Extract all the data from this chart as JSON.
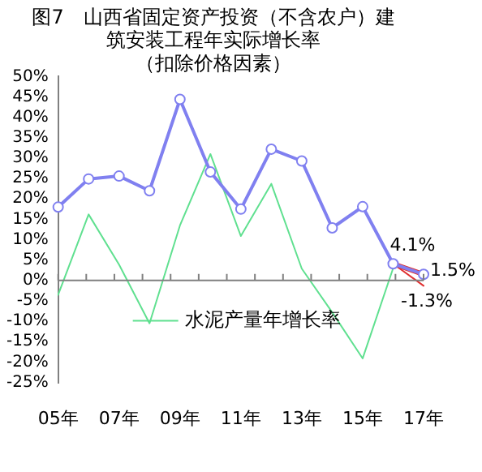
{
  "chart_data": {
    "type": "line",
    "title": "图7　山西省固定资产投资（不含农户）建筑安装工程年实际增长率",
    "subtitle": "（扣除价格因素）",
    "categories": [
      "05年",
      null,
      "07年",
      null,
      "09年",
      null,
      "11年",
      null,
      "13年",
      null,
      "15年",
      null,
      "17年"
    ],
    "series": [
      {
        "color": "#8080f0",
        "marker": "circle",
        "values": [
          18.0,
          24.9,
          25.6,
          22.0,
          44.4,
          26.6,
          17.5,
          32.2,
          29.3,
          12.9,
          18.1,
          4.1,
          1.5
        ]
      },
      {
        "name": "水泥产量年增长率",
        "color": "#60e090",
        "marker": "none",
        "values": [
          -3.5,
          16.2,
          3.9,
          -10.5,
          13.5,
          31.0,
          10.9,
          23.7,
          2.9,
          -7.8,
          -19.1,
          3.0,
          null
        ]
      },
      {
        "color": "#e03030",
        "marker": "none",
        "values": [
          null,
          null,
          null,
          null,
          null,
          null,
          null,
          null,
          null,
          null,
          null,
          4.1,
          1.5
        ]
      },
      {
        "color": "#e03030",
        "marker": "none",
        "values": [
          null,
          null,
          null,
          null,
          null,
          null,
          null,
          null,
          null,
          null,
          null,
          4.1,
          -1.3
        ]
      }
    ],
    "ylim": [
      -25,
      50
    ],
    "yticks": [
      {
        "value": -25,
        "label": "-25%"
      },
      {
        "value": -20,
        "label": "-20%"
      },
      {
        "value": -15,
        "label": "-15%"
      },
      {
        "value": -10,
        "label": "-10%"
      },
      {
        "value": -5,
        "label": "-5%"
      },
      {
        "value": 0,
        "label": "0%"
      },
      {
        "value": 5,
        "label": "5%"
      },
      {
        "value": 10,
        "label": "10%"
      },
      {
        "value": 15,
        "label": "15%"
      },
      {
        "value": 20,
        "label": "20%"
      },
      {
        "value": 25,
        "label": "25%"
      },
      {
        "value": 30,
        "label": "30%"
      },
      {
        "value": 35,
        "label": "35%"
      },
      {
        "value": 40,
        "label": "40%"
      },
      {
        "value": 45,
        "label": "45%"
      },
      {
        "value": 50,
        "label": "50%"
      }
    ],
    "annotations": [
      "4.1%",
      {
        "text": "1.5%",
        "x": "17年",
        "y": 1.5
      },
      {
        "text": "-1.3%",
        "x": "17年",
        "y": -1.3
      }
    ],
    "legend": "bottom left"
  }
}
